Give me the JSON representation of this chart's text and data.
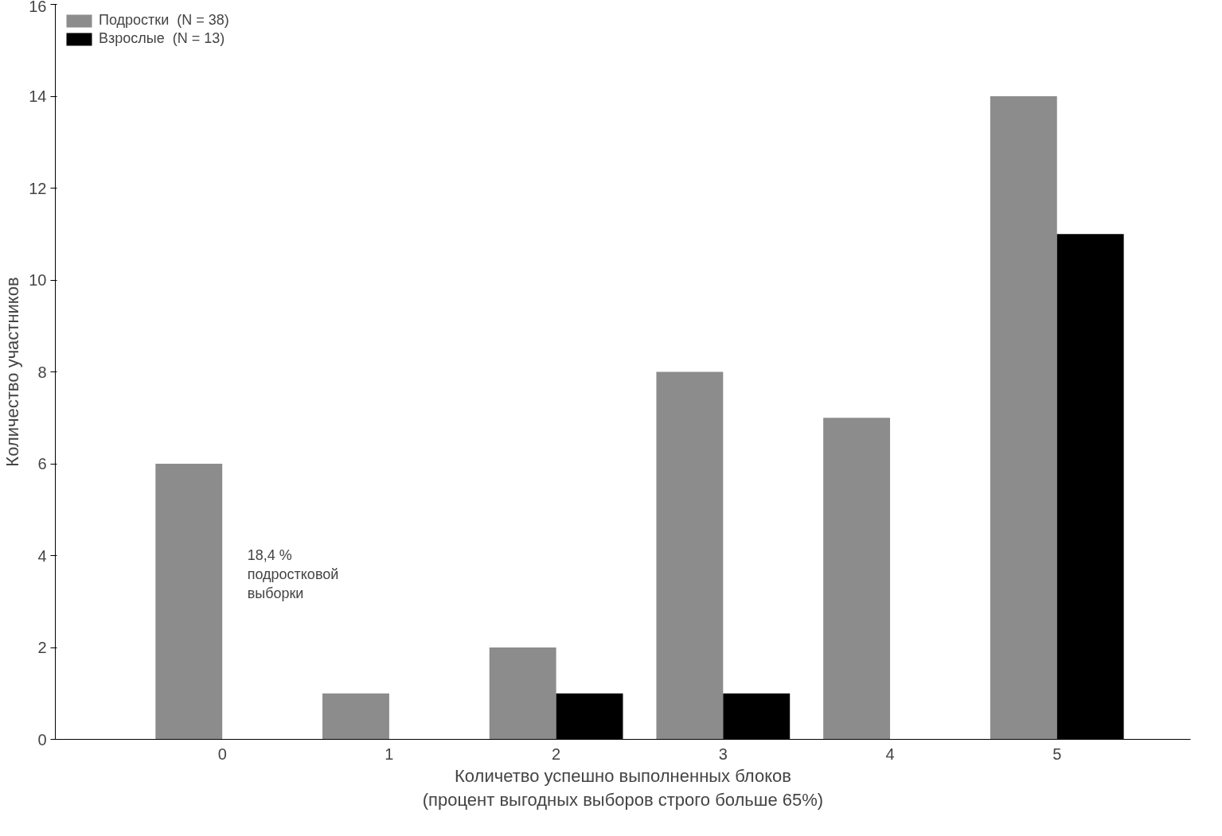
{
  "chart_data": {
    "type": "bar",
    "categories": [
      "0",
      "1",
      "2",
      "3",
      "4",
      "5"
    ],
    "series": [
      {
        "name": "Подростки  (N = 38)",
        "color": "#8c8c8c",
        "values": [
          6,
          1,
          2,
          8,
          7,
          14
        ]
      },
      {
        "name": "Взрослые  (N = 13)",
        "color": "#000000",
        "values": [
          0,
          0,
          1,
          1,
          0,
          11
        ]
      }
    ],
    "xlabel": "Количетво успешно выполненных блоков\n(процент выгодных выборов строго больше 65%)",
    "ylabel": "Количество участников",
    "ylim": [
      0,
      16
    ],
    "yticks": [
      0,
      2,
      4,
      6,
      8,
      10,
      12,
      14,
      16
    ],
    "annotations": [
      "18,4 %\nподростковой\nвыборки"
    ],
    "grid": false,
    "legend": "top left"
  }
}
